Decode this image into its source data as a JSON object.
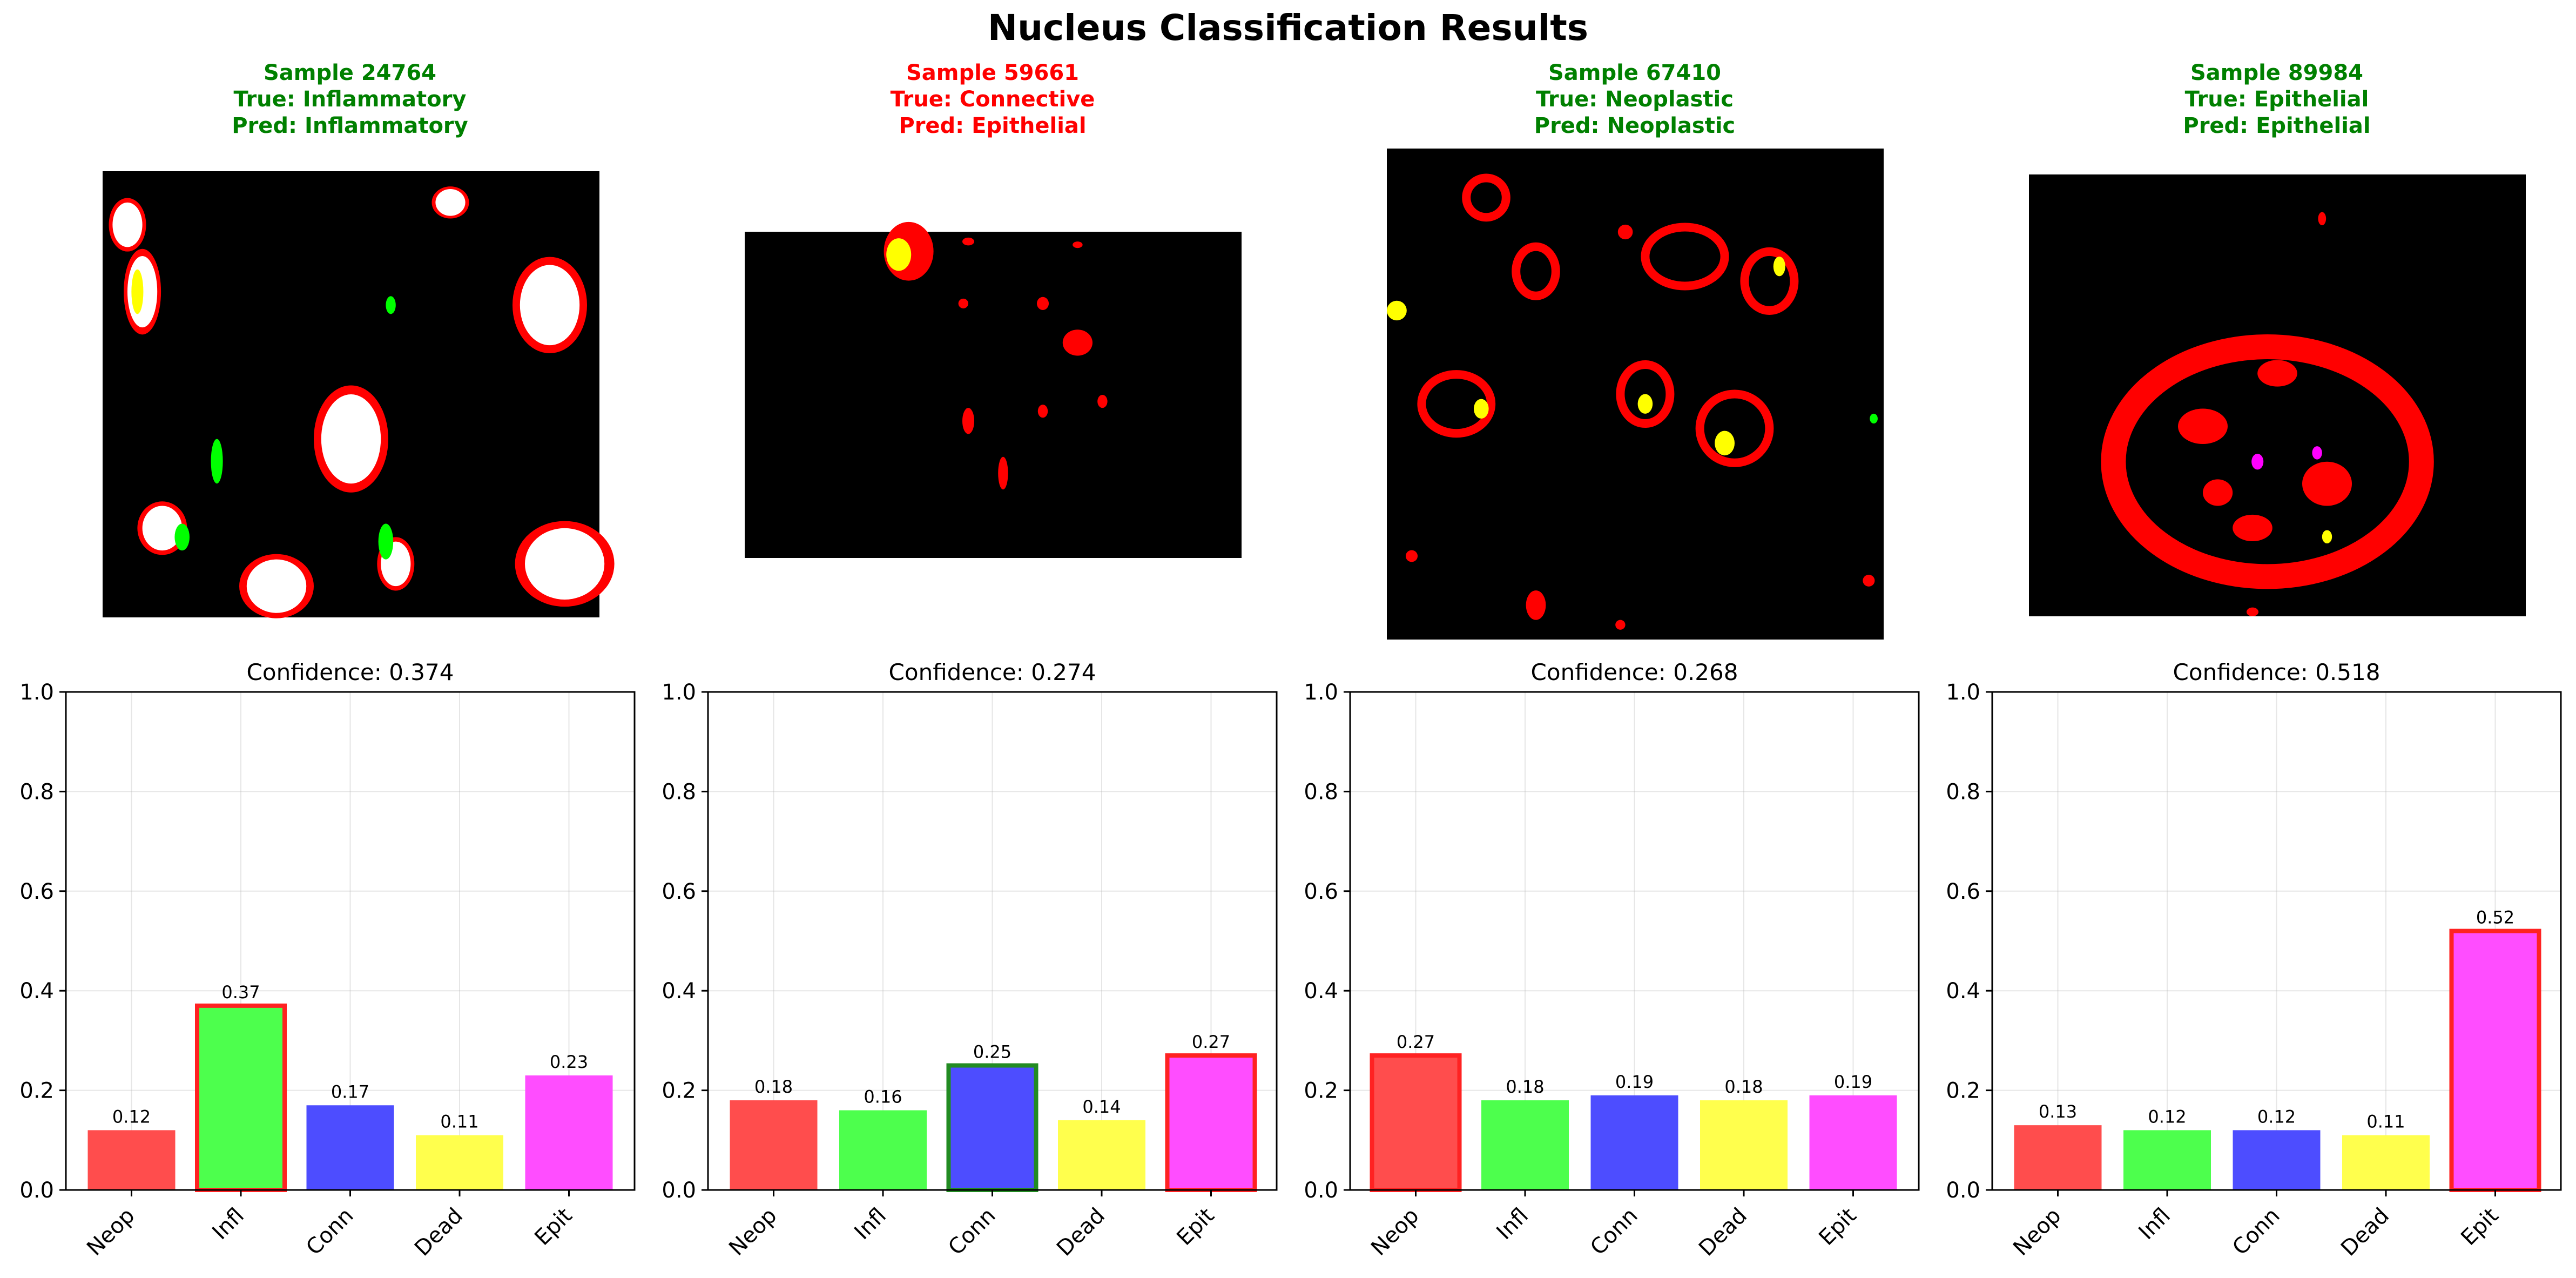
{
  "figure": {
    "title": "Nucleus Classification Results",
    "colors": {
      "correct": "#008000",
      "incorrect": "#ff0000",
      "class_fills": [
        "#ff4d4d",
        "#4dff4d",
        "#4d4dff",
        "#ffff4d",
        "#ff4dff"
      ],
      "true_edge": "#228b22",
      "pred_edge": "#ff2222"
    }
  },
  "samples": [
    {
      "id": "Sample 24764",
      "true_label": "True: Inflammatory",
      "pred_label": "Pred: Inflammatory",
      "status": "correct",
      "image": "Inflammatory nuclei segmentation mask (black background; red/yellow/white/green blobs)"
    },
    {
      "id": "Sample 59661",
      "true_label": "True: Connective",
      "pred_label": "Pred: Epithelial",
      "status": "incorrect",
      "image": "Connective nuclei segmentation mask (mostly black; sparse red blobs)"
    },
    {
      "id": "Sample 67410",
      "true_label": "True: Neoplastic",
      "pred_label": "Pred: Neoplastic",
      "status": "correct",
      "image": "Neoplastic nuclei segmentation mask (ring-like red clusters with yellow cores)"
    },
    {
      "id": "Sample 89984",
      "true_label": "True: Epithelial",
      "pred_label": "Pred: Epithelial",
      "status": "correct",
      "image": "Epithelial nucleus segmentation mask (large red ring structure)"
    }
  ],
  "chart_data": [
    {
      "type": "bar",
      "title": "Confidence: 0.374",
      "categories": [
        "Neop",
        "Infl",
        "Conn",
        "Dead",
        "Epit"
      ],
      "values": [
        0.12,
        0.37,
        0.17,
        0.11,
        0.23
      ],
      "value_labels": [
        "0.12",
        "0.37",
        "0.17",
        "0.11",
        "0.23"
      ],
      "true_index": 1,
      "pred_index": 1,
      "ylim": [
        0,
        1.0
      ],
      "yticks": [
        "0.0",
        "0.2",
        "0.4",
        "0.6",
        "0.8",
        "1.0"
      ],
      "grid": true
    },
    {
      "type": "bar",
      "title": "Confidence: 0.274",
      "categories": [
        "Neop",
        "Infl",
        "Conn",
        "Dead",
        "Epit"
      ],
      "values": [
        0.18,
        0.16,
        0.25,
        0.14,
        0.27
      ],
      "value_labels": [
        "0.18",
        "0.16",
        "0.25",
        "0.14",
        "0.27"
      ],
      "true_index": 2,
      "pred_index": 4,
      "ylim": [
        0,
        1.0
      ],
      "yticks": [
        "0.0",
        "0.2",
        "0.4",
        "0.6",
        "0.8",
        "1.0"
      ],
      "grid": true
    },
    {
      "type": "bar",
      "title": "Confidence: 0.268",
      "categories": [
        "Neop",
        "Infl",
        "Conn",
        "Dead",
        "Epit"
      ],
      "values": [
        0.27,
        0.18,
        0.19,
        0.18,
        0.19
      ],
      "value_labels": [
        "0.27",
        "0.18",
        "0.19",
        "0.18",
        "0.19"
      ],
      "true_index": 0,
      "pred_index": 0,
      "ylim": [
        0,
        1.0
      ],
      "yticks": [
        "0.0",
        "0.2",
        "0.4",
        "0.6",
        "0.8",
        "1.0"
      ],
      "grid": true
    },
    {
      "type": "bar",
      "title": "Confidence: 0.518",
      "categories": [
        "Neop",
        "Infl",
        "Conn",
        "Dead",
        "Epit"
      ],
      "values": [
        0.13,
        0.12,
        0.12,
        0.11,
        0.52
      ],
      "value_labels": [
        "0.13",
        "0.12",
        "0.12",
        "0.11",
        "0.52"
      ],
      "true_index": 4,
      "pred_index": 4,
      "ylim": [
        0,
        1.0
      ],
      "yticks": [
        "0.0",
        "0.2",
        "0.4",
        "0.6",
        "0.8",
        "1.0"
      ],
      "grid": true
    }
  ]
}
